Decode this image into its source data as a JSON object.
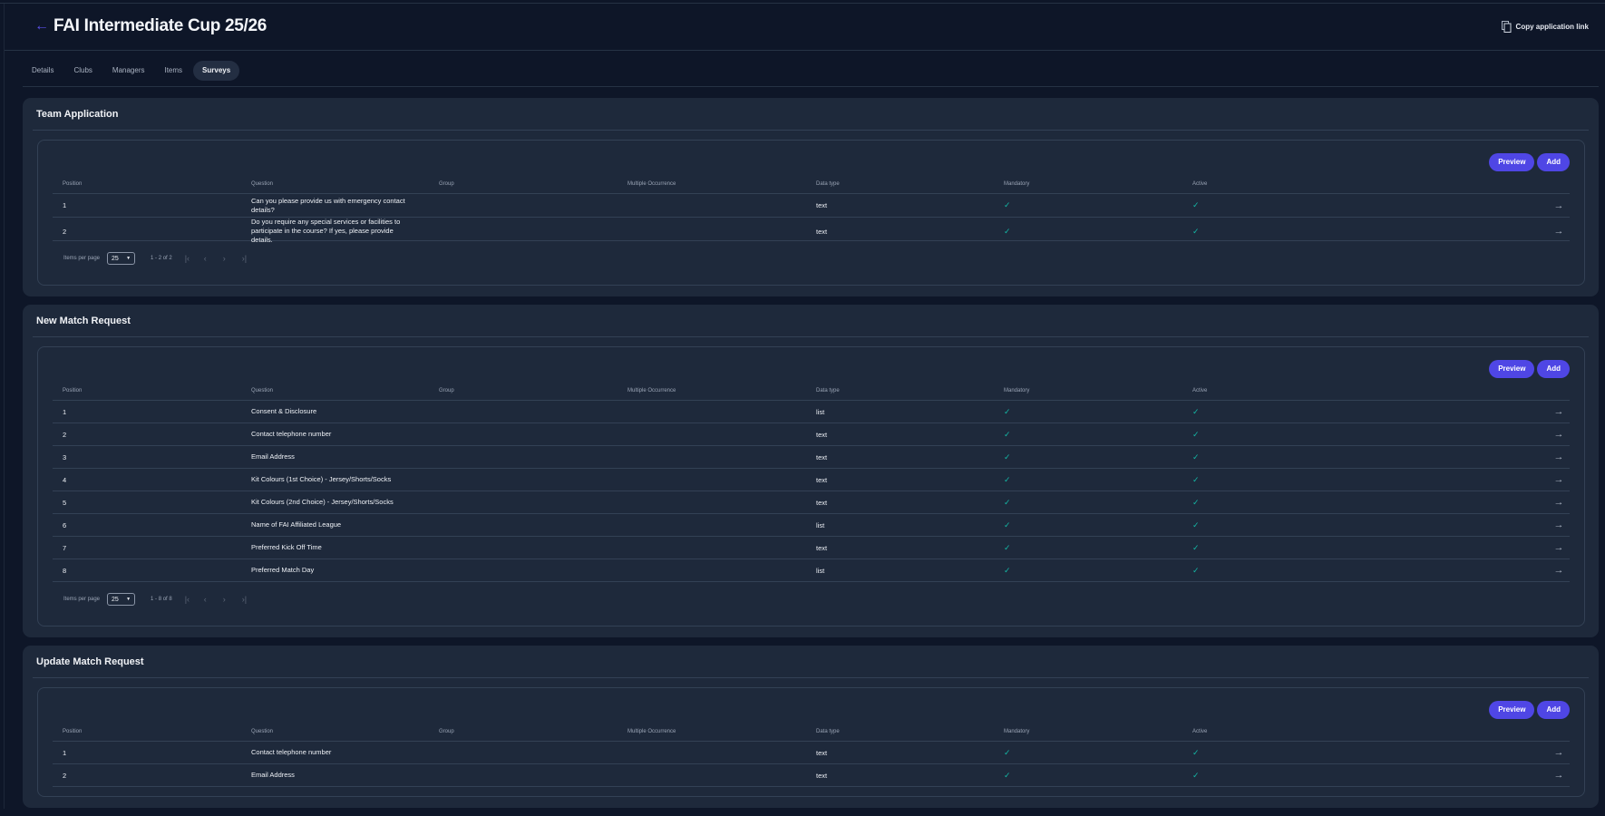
{
  "header": {
    "title": "FAI Intermediate Cup 25/26",
    "back_icon": "arrow-left-icon",
    "copy_link_label": "Copy application link",
    "copy_icon": "copy-icon"
  },
  "tabs": [
    {
      "label": "Details"
    },
    {
      "label": "Clubs"
    },
    {
      "label": "Managers"
    },
    {
      "label": "Items"
    },
    {
      "label": "Surveys",
      "active": true
    }
  ],
  "colors": {
    "accent": "#4f46e5",
    "check": "#14b8a6",
    "background": "#0e1628",
    "card": "#1e293b"
  },
  "columns": [
    "Position",
    "Question",
    "Group",
    "Multiple Occurrence",
    "Data type",
    "Mandatory",
    "Active"
  ],
  "buttons": {
    "preview": "Preview",
    "add": "Add"
  },
  "pagination_label": "Items per page",
  "sections": [
    {
      "title": "Team Application",
      "items_per_page": "25",
      "range": "1 - 2 of 2",
      "rows": [
        {
          "position": "1",
          "question": "Can you please provide us with emergency contact details?",
          "group": "",
          "multiple": "",
          "type": "text",
          "mandatory": true,
          "active": true
        },
        {
          "position": "2",
          "question": "Do you require any special services or facilities to participate in the course? If yes, please provide details.",
          "group": "",
          "multiple": "",
          "type": "text",
          "mandatory": true,
          "active": true
        }
      ]
    },
    {
      "title": "New Match Request",
      "items_per_page": "25",
      "range": "1 - 8 of 8",
      "rows": [
        {
          "position": "1",
          "question": "Consent & Disclosure",
          "group": "",
          "multiple": "",
          "type": "list",
          "mandatory": true,
          "active": true
        },
        {
          "position": "2",
          "question": "Contact telephone number",
          "group": "",
          "multiple": "",
          "type": "text",
          "mandatory": true,
          "active": true
        },
        {
          "position": "3",
          "question": "Email Address",
          "group": "",
          "multiple": "",
          "type": "text",
          "mandatory": true,
          "active": true
        },
        {
          "position": "4",
          "question": "Kit Colours (1st Choice) - Jersey/Shorts/Socks",
          "group": "",
          "multiple": "",
          "type": "text",
          "mandatory": true,
          "active": true
        },
        {
          "position": "5",
          "question": "Kit Colours (2nd Choice) - Jersey/Shorts/Socks",
          "group": "",
          "multiple": "",
          "type": "text",
          "mandatory": true,
          "active": true
        },
        {
          "position": "6",
          "question": "Name of FAI Affiliated League",
          "group": "",
          "multiple": "",
          "type": "list",
          "mandatory": true,
          "active": true
        },
        {
          "position": "7",
          "question": "Preferred Kick Off Time",
          "group": "",
          "multiple": "",
          "type": "text",
          "mandatory": true,
          "active": true
        },
        {
          "position": "8",
          "question": "Preferred Match Day",
          "group": "",
          "multiple": "",
          "type": "list",
          "mandatory": true,
          "active": true
        }
      ]
    },
    {
      "title": "Update Match Request",
      "rows": [
        {
          "position": "1",
          "question": "Contact telephone number",
          "group": "",
          "multiple": "",
          "type": "text",
          "mandatory": true,
          "active": true
        },
        {
          "position": "2",
          "question": "Email Address",
          "group": "",
          "multiple": "",
          "type": "text",
          "mandatory": true,
          "active": true
        }
      ]
    }
  ]
}
